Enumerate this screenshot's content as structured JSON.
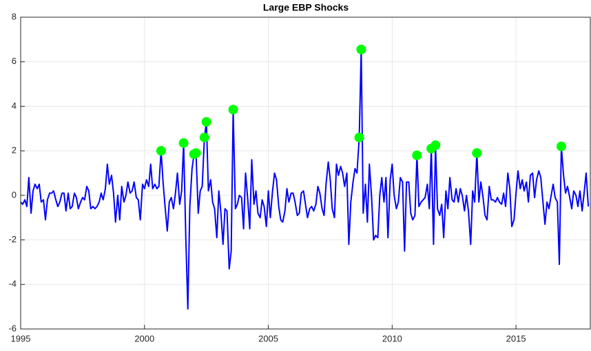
{
  "chart_data": {
    "type": "line",
    "title": "Large EBP Shocks",
    "xlim": [
      1995,
      2018
    ],
    "ylim": [
      -6,
      8
    ],
    "xticks": [
      1995,
      2000,
      2005,
      2010,
      2015
    ],
    "yticks": [
      -6,
      -4,
      -2,
      0,
      2,
      4,
      6,
      8
    ],
    "grid": true,
    "series": [
      {
        "type": "line",
        "color": "#0000ff",
        "x": [
          1995.0,
          1995.08,
          1995.17,
          1995.25,
          1995.33,
          1995.42,
          1995.5,
          1995.58,
          1995.67,
          1995.75,
          1995.83,
          1995.92,
          1996.0,
          1996.08,
          1996.17,
          1996.25,
          1996.33,
          1996.42,
          1996.5,
          1996.58,
          1996.67,
          1996.75,
          1996.83,
          1996.92,
          1997.0,
          1997.08,
          1997.17,
          1997.25,
          1997.33,
          1997.42,
          1997.5,
          1997.58,
          1997.67,
          1997.75,
          1997.83,
          1997.92,
          1998.0,
          1998.08,
          1998.17,
          1998.25,
          1998.33,
          1998.42,
          1998.5,
          1998.58,
          1998.67,
          1998.75,
          1998.83,
          1998.92,
          1999.0,
          1999.08,
          1999.17,
          1999.25,
          1999.33,
          1999.42,
          1999.5,
          1999.58,
          1999.67,
          1999.75,
          1999.83,
          1999.92,
          2000.0,
          2000.08,
          2000.17,
          2000.25,
          2000.33,
          2000.42,
          2000.5,
          2000.58,
          2000.67,
          2000.75,
          2000.83,
          2000.92,
          2001.0,
          2001.08,
          2001.17,
          2001.25,
          2001.33,
          2001.42,
          2001.5,
          2001.58,
          2001.67,
          2001.75,
          2001.83,
          2001.92,
          2002.0,
          2002.08,
          2002.17,
          2002.25,
          2002.33,
          2002.42,
          2002.5,
          2002.58,
          2002.67,
          2002.75,
          2002.83,
          2002.92,
          2003.0,
          2003.08,
          2003.17,
          2003.25,
          2003.33,
          2003.42,
          2003.5,
          2003.58,
          2003.67,
          2003.75,
          2003.83,
          2003.92,
          2004.0,
          2004.08,
          2004.17,
          2004.25,
          2004.33,
          2004.42,
          2004.5,
          2004.58,
          2004.67,
          2004.75,
          2004.83,
          2004.92,
          2005.0,
          2005.08,
          2005.17,
          2005.25,
          2005.33,
          2005.42,
          2005.5,
          2005.58,
          2005.67,
          2005.75,
          2005.83,
          2005.92,
          2006.0,
          2006.08,
          2006.17,
          2006.25,
          2006.33,
          2006.42,
          2006.5,
          2006.58,
          2006.67,
          2006.75,
          2006.83,
          2006.92,
          2007.0,
          2007.08,
          2007.17,
          2007.25,
          2007.33,
          2007.42,
          2007.5,
          2007.58,
          2007.67,
          2007.75,
          2007.83,
          2007.92,
          2008.0,
          2008.08,
          2008.17,
          2008.25,
          2008.33,
          2008.42,
          2008.5,
          2008.58,
          2008.67,
          2008.75,
          2008.83,
          2008.92,
          2009.0,
          2009.08,
          2009.17,
          2009.25,
          2009.33,
          2009.42,
          2009.5,
          2009.58,
          2009.67,
          2009.75,
          2009.83,
          2009.92,
          2010.0,
          2010.08,
          2010.17,
          2010.25,
          2010.33,
          2010.42,
          2010.5,
          2010.58,
          2010.67,
          2010.75,
          2010.83,
          2010.92,
          2011.0,
          2011.08,
          2011.17,
          2011.25,
          2011.33,
          2011.42,
          2011.5,
          2011.58,
          2011.67,
          2011.75,
          2011.83,
          2011.92,
          2012.0,
          2012.08,
          2012.17,
          2012.25,
          2012.33,
          2012.42,
          2012.5,
          2012.58,
          2012.67,
          2012.75,
          2012.83,
          2012.92,
          2013.0,
          2013.08,
          2013.17,
          2013.25,
          2013.33,
          2013.42,
          2013.5,
          2013.58,
          2013.67,
          2013.75,
          2013.83,
          2013.92,
          2014.0,
          2014.08,
          2014.17,
          2014.25,
          2014.33,
          2014.42,
          2014.5,
          2014.58,
          2014.67,
          2014.75,
          2014.83,
          2014.92,
          2015.0,
          2015.08,
          2015.17,
          2015.25,
          2015.33,
          2015.42,
          2015.5,
          2015.58,
          2015.67,
          2015.75,
          2015.83,
          2015.92,
          2016.0,
          2016.08,
          2016.17,
          2016.25,
          2016.33,
          2016.42,
          2016.5,
          2016.58,
          2016.67,
          2016.75,
          2016.83,
          2016.92,
          2017.0,
          2017.08,
          2017.17,
          2017.25,
          2017.33,
          2017.42,
          2017.5,
          2017.58,
          2017.67,
          2017.75,
          2017.83,
          2017.92
        ],
        "values": [
          -0.3,
          -0.4,
          -0.2,
          -0.5,
          0.8,
          -0.8,
          0.2,
          0.5,
          0.3,
          0.5,
          -0.3,
          -0.2,
          -1.1,
          -0.2,
          0.1,
          0.1,
          0.2,
          -0.2,
          -0.5,
          -0.3,
          0.1,
          0.1,
          -0.7,
          0.1,
          -0.6,
          -0.5,
          0.1,
          -0.1,
          -0.6,
          -0.3,
          -0.1,
          -0.2,
          0.4,
          0.2,
          -0.6,
          -0.5,
          -0.6,
          -0.5,
          -0.3,
          0.1,
          -0.2,
          0.3,
          1.4,
          0.5,
          0.9,
          0.1,
          -1.2,
          0.0,
          -1.1,
          0.4,
          -0.3,
          0.0,
          0.6,
          0.1,
          0.2,
          0.6,
          -0.1,
          -0.2,
          -1.1,
          0.5,
          0.3,
          0.7,
          0.4,
          1.4,
          0.3,
          0.5,
          0.3,
          0.4,
          2.0,
          0.6,
          -0.5,
          -1.6,
          -0.3,
          -0.1,
          -0.6,
          0.1,
          1.0,
          -0.4,
          0.2,
          2.35,
          -2.0,
          -5.1,
          -0.5,
          1.2,
          1.85,
          1.9,
          -0.8,
          0.2,
          0.4,
          2.6,
          3.3,
          0.2,
          0.7,
          -0.3,
          -0.6,
          -1.9,
          0.2,
          -0.7,
          -2.2,
          -0.6,
          -0.7,
          -3.3,
          -2.5,
          3.85,
          -0.6,
          -0.4,
          0.0,
          -0.1,
          -1.5,
          1.0,
          -0.2,
          -1.5,
          1.6,
          -0.4,
          0.2,
          -0.8,
          -1.0,
          -0.2,
          -0.5,
          -1.4,
          0.2,
          -1.0,
          0.2,
          1.0,
          0.7,
          -0.5,
          -1.1,
          -1.2,
          -0.7,
          0.3,
          -0.3,
          0.1,
          0.1,
          -0.3,
          -0.9,
          -0.8,
          0.1,
          0.2,
          -0.4,
          -1.0,
          -0.6,
          -0.5,
          -0.7,
          -0.4,
          0.4,
          0.1,
          -0.6,
          -0.9,
          0.5,
          1.5,
          0.7,
          -0.6,
          -1.0,
          1.4,
          0.9,
          1.3,
          1.0,
          0.4,
          1.0,
          -2.2,
          -0.3,
          0.6,
          1.2,
          1.0,
          2.6,
          6.55,
          -0.8,
          0.5,
          -1.2,
          1.4,
          -0.1,
          -2.0,
          -1.8,
          -1.9,
          0.0,
          0.8,
          -0.3,
          0.8,
          -1.9,
          0.7,
          1.4,
          0.0,
          -0.6,
          -0.3,
          0.8,
          0.6,
          -2.5,
          0.6,
          0.6,
          -0.8,
          -1.1,
          -0.9,
          1.8,
          -0.5,
          -0.3,
          -0.2,
          -0.1,
          0.5,
          -0.6,
          2.1,
          -2.2,
          2.25,
          -0.6,
          -0.9,
          -0.4,
          -1.9,
          0.2,
          -0.6,
          0.8,
          -0.2,
          -0.3,
          0.3,
          -0.3,
          0.3,
          0.0,
          -0.7,
          0.0,
          -0.7,
          -2.2,
          0.2,
          -0.3,
          1.9,
          -0.3,
          0.6,
          -0.1,
          -0.9,
          -1.1,
          0.4,
          -0.2,
          -0.2,
          -0.3,
          -0.1,
          -0.3,
          -0.4,
          0.1,
          -0.5,
          1.0,
          0.3,
          -1.4,
          -1.1,
          0.1,
          1.1,
          0.3,
          0.7,
          0.2,
          0.6,
          -0.3,
          0.9,
          1.0,
          -0.1,
          0.7,
          1.1,
          0.8,
          -0.2,
          -1.3,
          -0.3,
          -0.6,
          0.0,
          0.5,
          -0.1,
          -0.3,
          -3.1,
          2.2,
          0.9,
          0.1,
          0.4,
          -0.1,
          -0.6,
          0.2,
          0.0,
          -0.5,
          0.2,
          -0.7,
          0.1,
          1.0,
          -0.5
        ]
      },
      {
        "type": "scatter",
        "color": "#00ff00",
        "x": [
          2000.67,
          2001.58,
          2002.0,
          2002.08,
          2002.42,
          2002.5,
          2003.58,
          2008.67,
          2008.75,
          2011.0,
          2011.58,
          2011.75,
          2013.42,
          2016.83
        ],
        "values": [
          2.0,
          2.35,
          1.85,
          1.9,
          2.6,
          3.3,
          3.85,
          2.6,
          6.55,
          1.8,
          2.1,
          2.25,
          1.9,
          2.2
        ]
      }
    ]
  }
}
